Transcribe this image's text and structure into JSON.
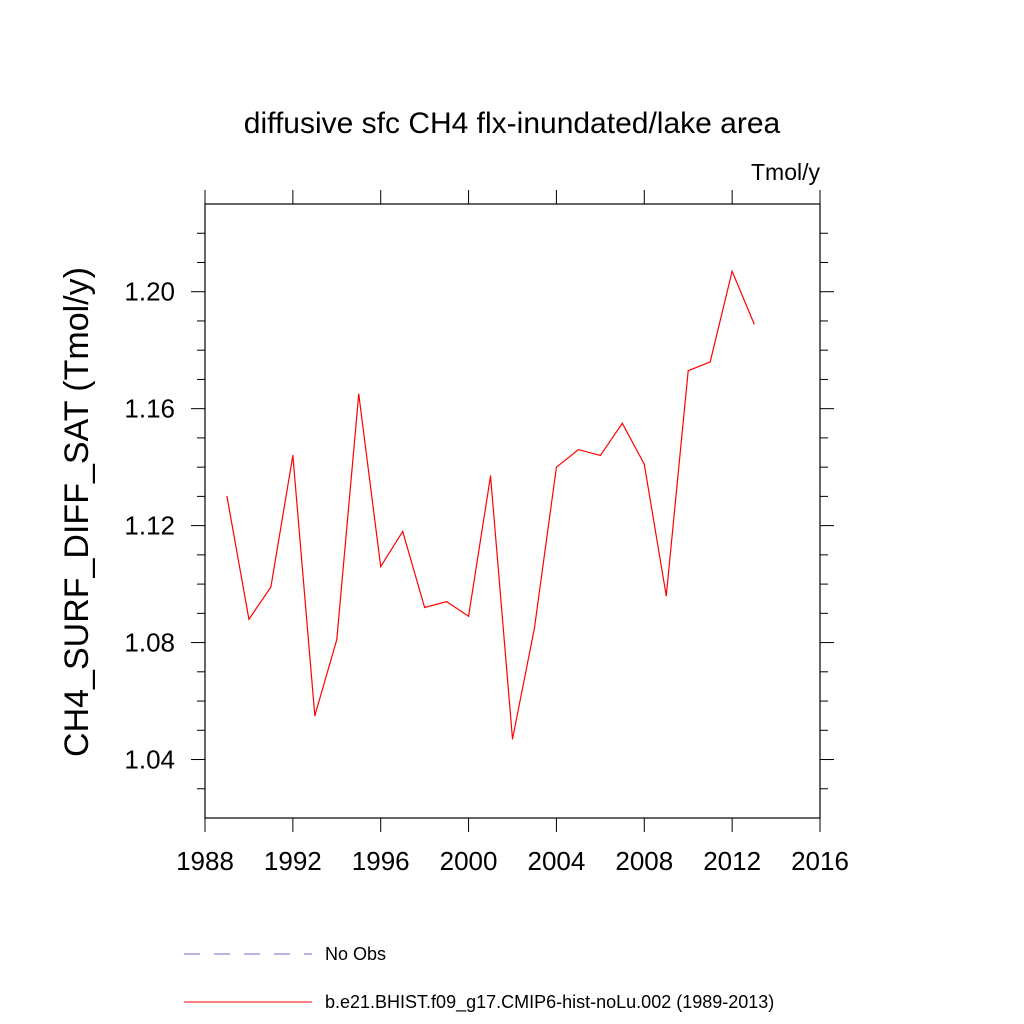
{
  "chart_data": {
    "type": "line",
    "title": "diffusive sfc CH4 flx-inundated/lake area",
    "units_label": "Tmol/y",
    "ylabel": "CH4_SURF_DIFF_SAT  (Tmol/y)",
    "xlabel": "",
    "xlim": [
      1988,
      2016
    ],
    "ylim": [
      1.02,
      1.23
    ],
    "xticks": [
      1988,
      1992,
      1996,
      2000,
      2004,
      2008,
      2012,
      2016
    ],
    "yticks": [
      1.04,
      1.08,
      1.12,
      1.16,
      1.2
    ],
    "ytick_labels": [
      "1.04",
      "1.08",
      "1.12",
      "1.16",
      "1.20"
    ],
    "grid": false,
    "series": [
      {
        "name": "b.e21.BHIST.f09_g17.CMIP6-hist-noLu.002 (1989-2013)",
        "color": "#ff0000",
        "style": "solid",
        "x": [
          1989,
          1990,
          1991,
          1992,
          1993,
          1994,
          1995,
          1996,
          1997,
          1998,
          1999,
          2000,
          2001,
          2002,
          2003,
          2004,
          2005,
          2006,
          2007,
          2008,
          2009,
          2010,
          2011,
          2012,
          2013
        ],
        "y": [
          1.13,
          1.088,
          1.099,
          1.144,
          1.055,
          1.081,
          1.165,
          1.106,
          1.118,
          1.092,
          1.094,
          1.089,
          1.137,
          1.047,
          1.085,
          1.14,
          1.146,
          1.144,
          1.155,
          1.141,
          1.096,
          1.173,
          1.176,
          1.207,
          1.189
        ]
      }
    ],
    "legend": {
      "placement": "bottom",
      "entries": [
        {
          "label": "No Obs",
          "color": "#6a6acd",
          "style": "dashed"
        },
        {
          "label": "b.e21.BHIST.f09_g17.CMIP6-hist-noLu.002 (1989-2013)",
          "color": "#ff0000",
          "style": "solid"
        }
      ]
    }
  }
}
